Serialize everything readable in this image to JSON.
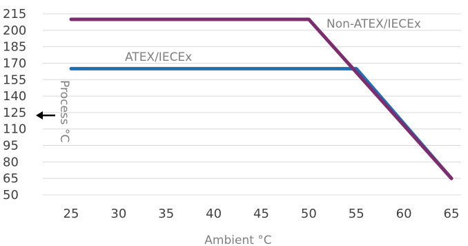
{
  "chart_data": {
    "type": "line",
    "title": "",
    "xlabel": "Ambient °C",
    "ylabel": "Process °C",
    "x_ticks": [
      25,
      30,
      35,
      40,
      45,
      50,
      55,
      60,
      65
    ],
    "y_ticks": [
      50,
      65,
      80,
      95,
      110,
      125,
      140,
      155,
      170,
      185,
      200,
      215
    ],
    "xlim": [
      25,
      65
    ],
    "ylim": [
      50,
      215
    ],
    "grid": true,
    "legend": "inline labels",
    "series": [
      {
        "name": "Non-ATEX/IECEx",
        "color": "#7b2d6e",
        "points": [
          [
            25,
            210
          ],
          [
            50,
            210
          ],
          [
            65,
            65
          ]
        ]
      },
      {
        "name": "ATEX/IECEx",
        "color": "#1f6fb2",
        "points": [
          [
            25,
            165
          ],
          [
            55,
            165
          ],
          [
            65,
            65
          ]
        ]
      }
    ]
  },
  "colors": {
    "grid": "#d9d9d9",
    "tick_text": "#404040",
    "axis_title": "#7f7f7f",
    "arrow": "#000000"
  }
}
